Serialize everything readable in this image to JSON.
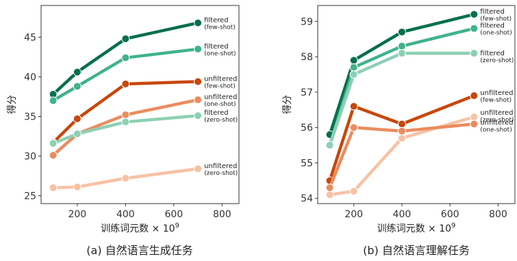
{
  "chart_data": [
    {
      "type": "line",
      "caption": "(a) 自然语言生成任务",
      "xlabel": "训练词元数 × 10",
      "xlabel_exp": "9",
      "ylabel": "得分",
      "xlim": [
        50,
        870
      ],
      "ylim": [
        24,
        49
      ],
      "xticks": [
        200,
        400,
        600,
        800
      ],
      "yticks": [
        25,
        30,
        35,
        40,
        45
      ],
      "series": [
        {
          "line1": "filtered",
          "line2": "(few-shot)",
          "color": "#03704a",
          "x": [
            100,
            200,
            400,
            700
          ],
          "values": [
            37.8,
            40.6,
            44.8,
            46.8
          ]
        },
        {
          "line1": "filtered",
          "line2": "(one-shot)",
          "color": "#3fb38a",
          "x": [
            100,
            200,
            400,
            700
          ],
          "values": [
            37.0,
            38.8,
            42.4,
            43.5
          ]
        },
        {
          "line1": "unfiltered",
          "line2": "(few-shot)",
          "color": "#c8470b",
          "x": [
            100,
            200,
            400,
            700
          ],
          "values": [
            31.7,
            34.7,
            39.1,
            39.4
          ]
        },
        {
          "line1": "unfiltered",
          "line2": "(one-shot)",
          "color": "#ea8c5e",
          "x": [
            100,
            200,
            400,
            700
          ],
          "values": [
            30.1,
            32.8,
            35.2,
            37.1
          ]
        },
        {
          "line1": "filtered",
          "line2": "(zero-shot)",
          "color": "#8dd0b4",
          "x": [
            100,
            200,
            400,
            700
          ],
          "values": [
            31.6,
            32.8,
            34.3,
            35.1
          ]
        },
        {
          "line1": "unfiltered",
          "line2": "(zero-shot)",
          "color": "#f8c1a4",
          "x": [
            100,
            200,
            400,
            700
          ],
          "values": [
            26.0,
            26.1,
            27.2,
            28.4
          ]
        }
      ]
    },
    {
      "type": "line",
      "caption": "(b) 自然语言理解任务",
      "xlabel": "训练词元数 × 10",
      "xlabel_exp": "9",
      "ylabel": "得分",
      "xlim": [
        50,
        870
      ],
      "ylim": [
        53.85,
        59.45
      ],
      "xticks": [
        200,
        400,
        600,
        800
      ],
      "yticks": [
        54,
        55,
        56,
        57,
        58,
        59
      ],
      "series": [
        {
          "line1": "filtered",
          "line2": "(few-shot)",
          "color": "#03704a",
          "x": [
            100,
            200,
            400,
            700
          ],
          "values": [
            55.8,
            57.9,
            58.7,
            59.2
          ]
        },
        {
          "line1": "filtered",
          "line2": "(one-shot)",
          "color": "#3fb38a",
          "x": [
            100,
            200,
            400,
            700
          ],
          "values": [
            55.5,
            57.7,
            58.3,
            58.8
          ]
        },
        {
          "line1": "filtered",
          "line2": "(zero-shot)",
          "color": "#8dd0b4",
          "x": [
            100,
            200,
            400,
            700
          ],
          "values": [
            55.5,
            57.5,
            58.1,
            58.1
          ]
        },
        {
          "line1": "unfiltered",
          "line2": "(few-shot)",
          "color": "#c8470b",
          "x": [
            100,
            200,
            400,
            700
          ],
          "values": [
            54.5,
            56.6,
            56.1,
            56.9
          ]
        },
        {
          "line1": "unfiltered",
          "line2": "(zero-shot)",
          "color": "#f8c1a4",
          "x": [
            100,
            200,
            400,
            700
          ],
          "values": [
            54.1,
            54.2,
            55.7,
            56.3
          ]
        },
        {
          "line1": "unfiltered",
          "line2": "(one-shot)",
          "color": "#ea8c5e",
          "x": [
            100,
            200,
            400,
            700
          ],
          "values": [
            54.3,
            56.0,
            55.9,
            56.1
          ]
        }
      ]
    }
  ]
}
